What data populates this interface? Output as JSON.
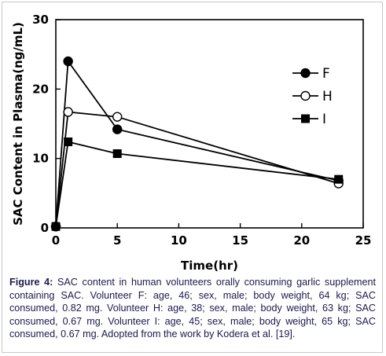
{
  "chart_data": {
    "type": "line",
    "xlabel": "Time(hr)",
    "ylabel": "SAC Content in Plasma(ng/mL)",
    "xlim": [
      0,
      25
    ],
    "ylim": [
      0,
      30
    ],
    "x_ticks": [
      "0",
      "5",
      "10",
      "15",
      "20",
      "25"
    ],
    "y_ticks": [
      "0",
      "10",
      "20",
      "30"
    ],
    "grid": false,
    "legend_position": "top-right",
    "series": [
      {
        "name": "F",
        "marker": "filled-circle",
        "x": [
          0,
          1,
          5,
          23
        ],
        "y": [
          0.2,
          24.0,
          14.2,
          6.8
        ]
      },
      {
        "name": "H",
        "marker": "open-circle",
        "x": [
          0,
          1,
          5,
          23
        ],
        "y": [
          0.2,
          16.7,
          16.0,
          6.4
        ]
      },
      {
        "name": "I",
        "marker": "filled-square",
        "x": [
          0,
          1,
          5,
          23
        ],
        "y": [
          0.2,
          12.4,
          10.7,
          7.0
        ]
      }
    ]
  },
  "caption": {
    "lead": "Figure 4:",
    "text": " SAC content in human volunteers orally consuming garlic supplement containing SAC. Volunteer F: age, 46; sex, male; body weight, 64 kg; SAC consumed, 0.82 mg. Volunteer H: age, 38; sex, male; body weight, 63 kg; SAC consumed, 0.67 mg. Volunteer I: age, 45; sex, male; body weight, 65 kg; SAC consumed, 0.67 mg. Adopted from the work by Kodera et al. [19]."
  }
}
